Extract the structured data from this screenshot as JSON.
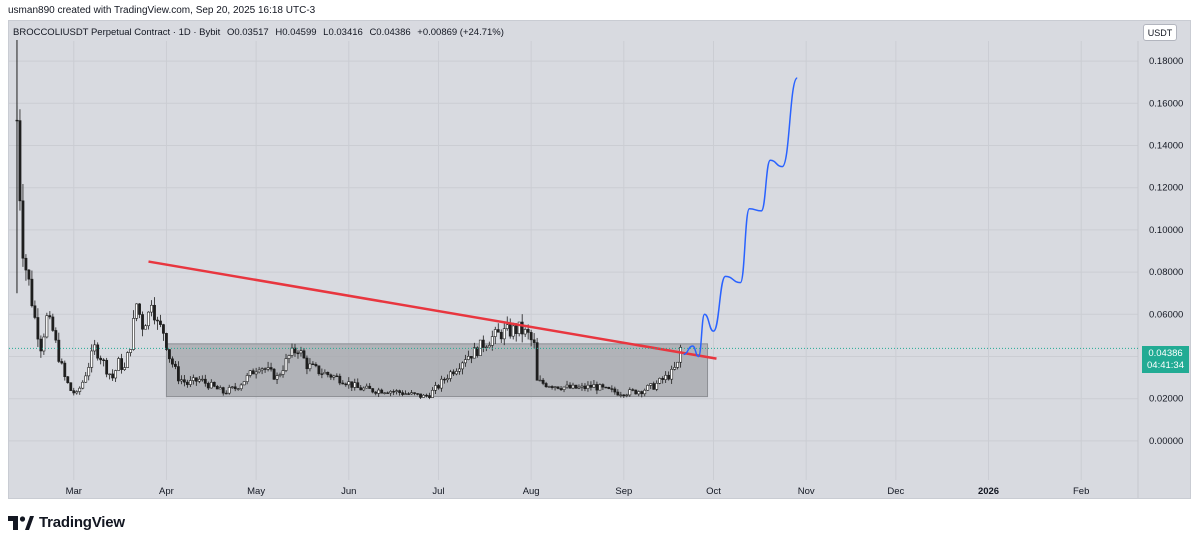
{
  "header": {
    "caption": "usman890 created with TradingView.com, Sep 20, 2025 16:18 UTC-3"
  },
  "legend": {
    "symbol": "BROCCOLIUSDT Perpetual Contract · 1D · Bybit",
    "open": "O0.03517",
    "high": "H0.04599",
    "low": "L0.03416",
    "close": "C0.04386",
    "change": "+0.00869 (+24.71%)"
  },
  "currency": "USDT",
  "last_price": {
    "value": "0.04386",
    "countdown": "04:41:34"
  },
  "brand": {
    "name": "TradingView"
  },
  "colors": {
    "background": "#d8dae0",
    "up": "#22ab94",
    "candle": "#1e1e1e",
    "trendline": "#e8363f",
    "projection": "#2962ff",
    "range_box": "#a4a6ab"
  },
  "chart_data": {
    "type": "candlestick",
    "title": "BROCCOLIUSDT Perpetual Contract · 1D · Bybit",
    "x_ticks": [
      "Mar",
      "Apr",
      "May",
      "Jun",
      "Jul",
      "Aug",
      "Sep",
      "Oct",
      "Nov",
      "Dec",
      "2026",
      "Feb"
    ],
    "y_ticks": [
      "0.18000",
      "0.16000",
      "0.14000",
      "0.12000",
      "0.10000",
      "0.08000",
      "0.06000",
      "0.04000",
      "0.02000",
      "0.00000"
    ],
    "ylim": [
      -0.01,
      0.19
    ],
    "xlim": [
      "2025-02-07",
      "2026-02-20"
    ],
    "grid": true,
    "price_series": [
      {
        "date": "2025-02-10",
        "price": 0.152
      },
      {
        "date": "2025-02-11",
        "price": 0.118
      },
      {
        "date": "2025-02-12",
        "price": 0.092
      },
      {
        "date": "2025-02-13",
        "price": 0.082
      },
      {
        "date": "2025-02-14",
        "price": 0.075
      },
      {
        "date": "2025-02-16",
        "price": 0.058
      },
      {
        "date": "2025-02-18",
        "price": 0.045
      },
      {
        "date": "2025-02-20",
        "price": 0.058
      },
      {
        "date": "2025-02-22",
        "price": 0.052
      },
      {
        "date": "2025-02-24",
        "price": 0.04
      },
      {
        "date": "2025-02-26",
        "price": 0.03
      },
      {
        "date": "2025-02-28",
        "price": 0.024
      },
      {
        "date": "2025-03-02",
        "price": 0.022
      },
      {
        "date": "2025-03-04",
        "price": 0.028
      },
      {
        "date": "2025-03-06",
        "price": 0.036
      },
      {
        "date": "2025-03-08",
        "price": 0.044
      },
      {
        "date": "2025-03-10",
        "price": 0.04
      },
      {
        "date": "2025-03-12",
        "price": 0.034
      },
      {
        "date": "2025-03-14",
        "price": 0.03
      },
      {
        "date": "2025-03-16",
        "price": 0.037
      },
      {
        "date": "2025-03-18",
        "price": 0.034
      },
      {
        "date": "2025-03-20",
        "price": 0.046
      },
      {
        "date": "2025-03-22",
        "price": 0.065
      },
      {
        "date": "2025-03-24",
        "price": 0.055
      },
      {
        "date": "2025-03-26",
        "price": 0.06
      },
      {
        "date": "2025-03-27",
        "price": 0.068
      },
      {
        "date": "2025-03-29",
        "price": 0.055
      },
      {
        "date": "2025-03-31",
        "price": 0.052
      },
      {
        "date": "2025-04-02",
        "price": 0.04
      },
      {
        "date": "2025-04-05",
        "price": 0.03
      },
      {
        "date": "2025-04-08",
        "price": 0.027
      },
      {
        "date": "2025-04-12",
        "price": 0.029
      },
      {
        "date": "2025-04-16",
        "price": 0.026
      },
      {
        "date": "2025-04-20",
        "price": 0.023
      },
      {
        "date": "2025-04-24",
        "price": 0.025
      },
      {
        "date": "2025-04-28",
        "price": 0.03
      },
      {
        "date": "2025-05-02",
        "price": 0.036
      },
      {
        "date": "2025-05-05",
        "price": 0.033
      },
      {
        "date": "2025-05-08",
        "price": 0.03
      },
      {
        "date": "2025-05-12",
        "price": 0.04
      },
      {
        "date": "2025-05-15",
        "price": 0.044
      },
      {
        "date": "2025-05-18",
        "price": 0.036
      },
      {
        "date": "2025-05-22",
        "price": 0.033
      },
      {
        "date": "2025-05-26",
        "price": 0.031
      },
      {
        "date": "2025-05-30",
        "price": 0.029
      },
      {
        "date": "2025-06-04",
        "price": 0.025
      },
      {
        "date": "2025-06-09",
        "price": 0.024
      },
      {
        "date": "2025-06-14",
        "price": 0.024
      },
      {
        "date": "2025-06-18",
        "price": 0.023
      },
      {
        "date": "2025-06-22",
        "price": 0.022
      },
      {
        "date": "2025-06-26",
        "price": 0.021
      },
      {
        "date": "2025-06-28",
        "price": 0.022
      },
      {
        "date": "2025-07-01",
        "price": 0.026
      },
      {
        "date": "2025-07-04",
        "price": 0.031
      },
      {
        "date": "2025-07-07",
        "price": 0.035
      },
      {
        "date": "2025-07-10",
        "price": 0.04
      },
      {
        "date": "2025-07-13",
        "price": 0.042
      },
      {
        "date": "2025-07-16",
        "price": 0.046
      },
      {
        "date": "2025-07-19",
        "price": 0.049
      },
      {
        "date": "2025-07-22",
        "price": 0.051
      },
      {
        "date": "2025-07-25",
        "price": 0.052
      },
      {
        "date": "2025-07-28",
        "price": 0.053
      },
      {
        "date": "2025-07-31",
        "price": 0.05
      },
      {
        "date": "2025-08-02",
        "price": 0.045
      },
      {
        "date": "2025-08-03",
        "price": 0.028
      },
      {
        "date": "2025-08-06",
        "price": 0.027
      },
      {
        "date": "2025-08-10",
        "price": 0.026
      },
      {
        "date": "2025-08-14",
        "price": 0.025
      },
      {
        "date": "2025-08-18",
        "price": 0.025
      },
      {
        "date": "2025-08-22",
        "price": 0.026
      },
      {
        "date": "2025-08-26",
        "price": 0.024
      },
      {
        "date": "2025-08-30",
        "price": 0.023
      },
      {
        "date": "2025-09-03",
        "price": 0.023
      },
      {
        "date": "2025-09-07",
        "price": 0.024
      },
      {
        "date": "2025-09-11",
        "price": 0.026
      },
      {
        "date": "2025-09-14",
        "price": 0.029
      },
      {
        "date": "2025-09-17",
        "price": 0.032
      },
      {
        "date": "2025-09-19",
        "price": 0.036
      },
      {
        "date": "2025-09-20",
        "price": 0.04386
      }
    ],
    "range_box": {
      "start": "2025-04-01",
      "end": "2025-09-29",
      "low": 0.021,
      "high": 0.046
    },
    "trendline": {
      "start": {
        "date": "2025-03-26",
        "price": 0.085
      },
      "end": {
        "date": "2025-10-02",
        "price": 0.039
      }
    },
    "projection": [
      {
        "date": "2025-09-21",
        "price": 0.041
      },
      {
        "date": "2025-09-24",
        "price": 0.045
      },
      {
        "date": "2025-09-26",
        "price": 0.04
      },
      {
        "date": "2025-09-28",
        "price": 0.06
      },
      {
        "date": "2025-10-01",
        "price": 0.052
      },
      {
        "date": "2025-10-05",
        "price": 0.078
      },
      {
        "date": "2025-10-10",
        "price": 0.075
      },
      {
        "date": "2025-10-13",
        "price": 0.11
      },
      {
        "date": "2025-10-17",
        "price": 0.109
      },
      {
        "date": "2025-10-20",
        "price": 0.133
      },
      {
        "date": "2025-10-24",
        "price": 0.13
      },
      {
        "date": "2025-10-29",
        "price": 0.172
      }
    ]
  }
}
